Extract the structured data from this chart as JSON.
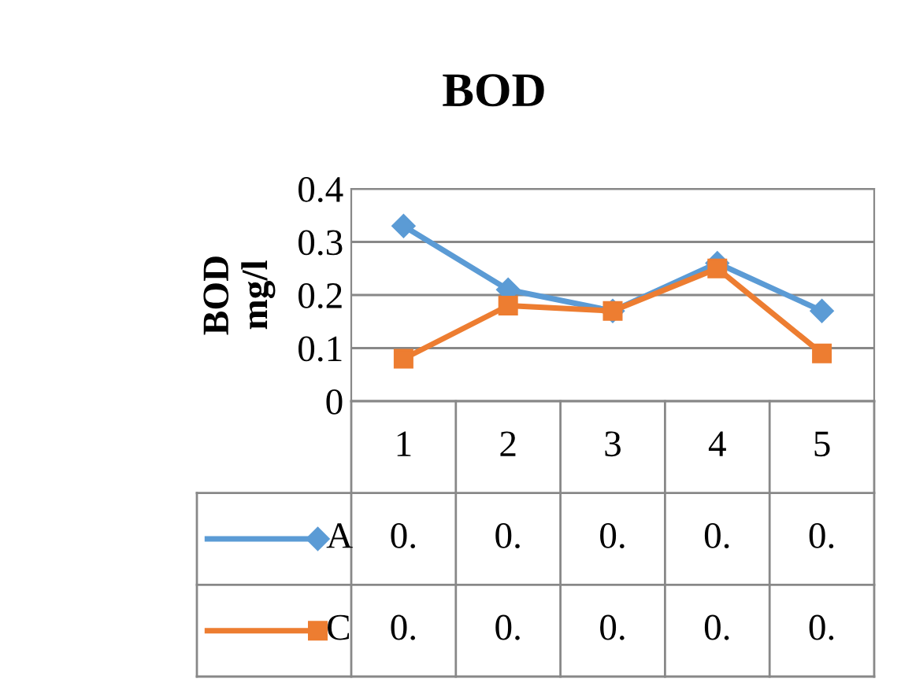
{
  "chart_data": {
    "type": "line",
    "title": "BOD",
    "ylabel": "BOD mg/l",
    "categories": [
      "1",
      "2",
      "3",
      "4",
      "5"
    ],
    "series": [
      {
        "name": "A",
        "color": "#5b9bd5",
        "marker": "diamond",
        "values": [
          0.33,
          0.21,
          0.17,
          0.26,
          0.17
        ],
        "value_labels": [
          "0.",
          "0.",
          "0.",
          "0.",
          "0."
        ]
      },
      {
        "name": "C",
        "color": "#ed7d31",
        "marker": "square",
        "values": [
          0.08,
          0.18,
          0.17,
          0.25,
          0.09
        ],
        "value_labels": [
          "0.",
          "0.",
          "0.",
          "0.",
          "0."
        ]
      }
    ],
    "ylim": [
      0,
      0.4
    ],
    "yticks": [
      {
        "value": 0,
        "label": "0"
      },
      0.1,
      0.2,
      0.3,
      0.4
    ],
    "grid": "y",
    "legend": "bottom left"
  }
}
